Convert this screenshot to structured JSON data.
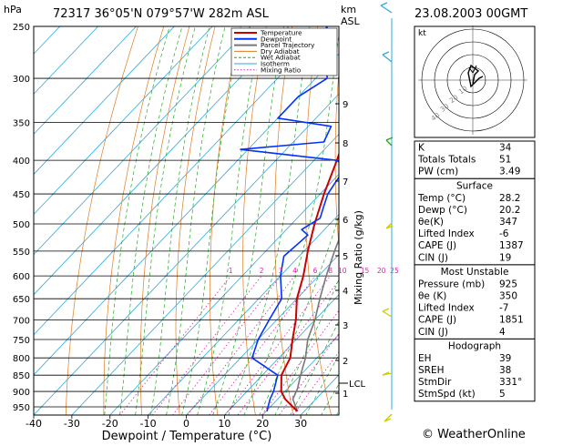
{
  "header": {
    "station_line": "72317  36°05'N  079°57'W   282m  ASL",
    "datetime": "23.08.2003  00GMT",
    "hpa_unit": "hPa",
    "km_unit": "km",
    "asl_unit": "ASL",
    "kt_label": "kt",
    "copyright": "© WeatherOnline"
  },
  "chart_data": {
    "type": "line",
    "title": "72317  36°05'N  079°57'W   282m  ASL",
    "xlabel": "Dewpoint / Temperature (°C)",
    "ylabel": "hPa",
    "xlim": [
      -40,
      40
    ],
    "x_ticks": [
      "-40",
      "-30",
      "-20",
      "-10",
      "0",
      "10",
      "20",
      "30"
    ],
    "pressure_levels": [
      250,
      300,
      350,
      400,
      450,
      500,
      550,
      600,
      650,
      700,
      750,
      800,
      850,
      900,
      950
    ],
    "km_ticks": [
      "1",
      "2",
      "3",
      "4",
      "5",
      "6",
      "7",
      "8",
      "9"
    ],
    "lcl_label": "LCL",
    "mixing_ratio_label": "Mixing Ratio (g/kg)",
    "mixing_ratio_values": [
      "1",
      "2",
      "3",
      "4",
      "6",
      "8",
      "10",
      "15",
      "20",
      "25"
    ],
    "legend": [
      "Temperature",
      "Dewpoint",
      "Parcel Trajectory",
      "Dry Adiabat",
      "Wet Adiabat",
      "Isotherm",
      "Mixing Ratio"
    ],
    "legend_colors": [
      "#cc0000",
      "#0033ff",
      "#777777",
      "#e07b20",
      "#22aa22",
      "#33aadd",
      "#dd22aa"
    ],
    "temperature": {
      "color": "#cc0000",
      "points": [
        [
          28.2,
          965
        ],
        [
          22,
          925
        ],
        [
          19,
          900
        ],
        [
          15,
          850
        ],
        [
          13,
          800
        ],
        [
          9,
          750
        ],
        [
          5,
          700
        ],
        [
          0,
          650
        ],
        [
          -4,
          600
        ],
        [
          -9,
          550
        ],
        [
          -14,
          500
        ],
        [
          -19,
          450
        ],
        [
          -24,
          400
        ],
        [
          -30,
          350
        ],
        [
          -36,
          300
        ],
        [
          -46,
          250
        ]
      ]
    },
    "dewpoint": {
      "color": "#0033ff",
      "points": [
        [
          20.2,
          965
        ],
        [
          18,
          925
        ],
        [
          17,
          900
        ],
        [
          14,
          850
        ],
        [
          3,
          800
        ],
        [
          0,
          750
        ],
        [
          -2,
          700
        ],
        [
          -4,
          650
        ],
        [
          -10,
          600
        ],
        [
          -14,
          560
        ],
        [
          -13,
          520
        ],
        [
          -16,
          510
        ],
        [
          -14,
          490
        ],
        [
          -16,
          470
        ],
        [
          -18,
          450
        ],
        [
          -19,
          430
        ],
        [
          -20,
          410
        ],
        [
          -24,
          400
        ],
        [
          -52,
          385
        ],
        [
          -32,
          375
        ],
        [
          -34,
          355
        ],
        [
          -50,
          345
        ],
        [
          -50,
          320
        ],
        [
          -47,
          300
        ],
        [
          -52,
          280
        ],
        [
          -60,
          250
        ]
      ]
    },
    "parcel": {
      "color": "#777777",
      "points": [
        [
          28.2,
          965
        ],
        [
          24,
          925
        ],
        [
          22.5,
          890
        ],
        [
          20,
          850
        ],
        [
          17,
          800
        ],
        [
          13,
          750
        ],
        [
          10,
          700
        ],
        [
          6,
          650
        ],
        [
          2,
          600
        ],
        [
          -2,
          550
        ],
        [
          -6,
          500
        ],
        [
          -11,
          450
        ],
        [
          -16,
          400
        ],
        [
          -22,
          350
        ],
        [
          -29,
          300
        ],
        [
          -38,
          250
        ]
      ]
    }
  },
  "hodograph": {
    "label": "kt",
    "ring_labels": [
      "10",
      "20",
      "30",
      "40"
    ]
  },
  "indices": {
    "rows": [
      {
        "label": "K",
        "value": "34"
      },
      {
        "label": "Totals Totals",
        "value": "51"
      },
      {
        "label": "PW (cm)",
        "value": "3.49"
      }
    ]
  },
  "surface": {
    "title": "Surface",
    "rows": [
      {
        "label": "Temp (°C)",
        "value": "28.2"
      },
      {
        "label": "Dewp (°C)",
        "value": "20.2"
      },
      {
        "label": "θe(K)",
        "value": "347"
      },
      {
        "label": "Lifted Index",
        "value": "-6"
      },
      {
        "label": "CAPE (J)",
        "value": "1387"
      },
      {
        "label": "CIN (J)",
        "value": "19"
      }
    ]
  },
  "most_unstable": {
    "title": "Most Unstable",
    "rows": [
      {
        "label": "Pressure (mb)",
        "value": "925"
      },
      {
        "label": "θe (K)",
        "value": "350"
      },
      {
        "label": "Lifted Index",
        "value": "-7"
      },
      {
        "label": "CAPE (J)",
        "value": "1851"
      },
      {
        "label": "CIN (J)",
        "value": "4"
      }
    ]
  },
  "hodograph_table": {
    "title": "Hodograph",
    "rows": [
      {
        "label": "EH",
        "value": "39"
      },
      {
        "label": "SREH",
        "value": "38"
      },
      {
        "label": "StmDir",
        "value": "331°"
      },
      {
        "label": "StmSpd (kt)",
        "value": "5"
      }
    ]
  }
}
